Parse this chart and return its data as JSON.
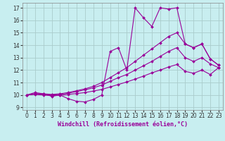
{
  "background_color": "#c8eef0",
  "grid_color": "#aacccc",
  "line_color": "#990099",
  "marker": "D",
  "markersize": 2.0,
  "linewidth": 0.8,
  "xlabel": "Windchill (Refroidissement éolien,°C)",
  "xlabel_fontsize": 6.0,
  "tick_fontsize": 5.5,
  "xlim": [
    -0.5,
    23.5
  ],
  "ylim": [
    8.8,
    17.4
  ],
  "yticks": [
    9,
    10,
    11,
    12,
    13,
    14,
    15,
    16,
    17
  ],
  "xticks": [
    0,
    1,
    2,
    3,
    4,
    5,
    6,
    7,
    8,
    9,
    10,
    11,
    12,
    13,
    14,
    15,
    16,
    17,
    18,
    19,
    20,
    21,
    22,
    23
  ],
  "curves": [
    {
      "x": [
        0,
        1,
        2,
        3,
        4,
        5,
        6,
        7,
        8,
        9,
        10,
        11,
        12,
        13,
        14,
        15,
        16,
        17,
        18,
        19,
        20,
        21,
        22,
        23
      ],
      "y": [
        10.0,
        10.2,
        10.1,
        9.9,
        10.0,
        9.7,
        9.5,
        9.45,
        9.65,
        10.0,
        13.5,
        13.8,
        12.0,
        17.0,
        16.2,
        15.5,
        17.0,
        16.9,
        17.0,
        14.1,
        13.8,
        14.1,
        12.9,
        12.4
      ]
    },
    {
      "x": [
        0,
        1,
        2,
        3,
        4,
        5,
        6,
        7,
        8,
        9,
        10,
        11,
        12,
        13,
        14,
        15,
        16,
        17,
        18,
        19,
        20,
        21,
        22,
        23
      ],
      "y": [
        10.0,
        10.1,
        10.1,
        10.05,
        10.1,
        10.2,
        10.35,
        10.5,
        10.7,
        11.0,
        11.4,
        11.8,
        12.2,
        12.7,
        13.2,
        13.7,
        14.2,
        14.7,
        15.0,
        14.1,
        13.8,
        14.1,
        12.9,
        12.4
      ]
    },
    {
      "x": [
        0,
        1,
        2,
        3,
        4,
        5,
        6,
        7,
        8,
        9,
        10,
        11,
        12,
        13,
        14,
        15,
        16,
        17,
        18,
        19,
        20,
        21,
        22,
        23
      ],
      "y": [
        10.0,
        10.1,
        10.05,
        10.0,
        10.05,
        10.15,
        10.28,
        10.42,
        10.58,
        10.8,
        11.1,
        11.4,
        11.65,
        12.0,
        12.35,
        12.7,
        13.1,
        13.5,
        13.8,
        13.0,
        12.7,
        13.0,
        12.5,
        12.2
      ]
    },
    {
      "x": [
        0,
        1,
        2,
        3,
        4,
        5,
        6,
        7,
        8,
        9,
        10,
        11,
        12,
        13,
        14,
        15,
        16,
        17,
        18,
        19,
        20,
        21,
        22,
        23
      ],
      "y": [
        10.0,
        10.05,
        10.0,
        9.95,
        9.98,
        10.05,
        10.12,
        10.2,
        10.32,
        10.45,
        10.65,
        10.85,
        11.05,
        11.28,
        11.52,
        11.78,
        12.0,
        12.25,
        12.45,
        11.9,
        11.75,
        12.0,
        11.65,
        12.2
      ]
    }
  ]
}
